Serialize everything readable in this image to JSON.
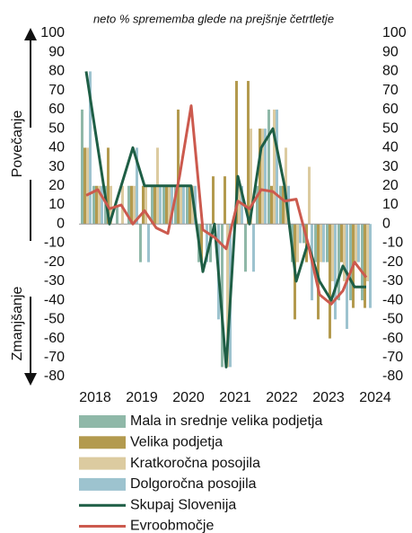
{
  "chart_data": {
    "type": "bar_line",
    "title": "neto % sprememba glede na prejšnje četrtletje",
    "y_label_up": "Povečanje",
    "y_label_down": "Zmanjšanje",
    "categories": [
      "2018",
      null,
      null,
      null,
      "2019",
      null,
      null,
      null,
      "2020",
      null,
      null,
      null,
      "2021",
      null,
      null,
      null,
      "2022",
      null,
      null,
      null,
      "2023",
      null,
      null,
      null,
      "2024"
    ],
    "ylim": [
      -80,
      100
    ],
    "yticks": [
      -80,
      -70,
      -60,
      -50,
      -40,
      -30,
      -20,
      -10,
      0,
      10,
      20,
      30,
      40,
      50,
      60,
      70,
      80,
      90,
      100
    ],
    "y2lim": [
      -80,
      100
    ],
    "y2ticks": [
      -80,
      -70,
      -60,
      -50,
      -40,
      -30,
      -20,
      -10,
      0,
      10,
      20,
      30,
      40,
      50,
      60,
      70,
      80,
      90,
      100
    ],
    "series": [
      {
        "name": "Mala in srednje velika podjetja",
        "type": "bar",
        "color": "#8fb8a8",
        "values": [
          60,
          20,
          20,
          10,
          20,
          -20,
          20,
          20,
          20,
          20,
          -20,
          -20,
          -75,
          0,
          -25,
          20,
          60,
          20,
          -20,
          -10,
          -20,
          -20,
          -40,
          -40,
          -40
        ]
      },
      {
        "name": "Velika podjetja",
        "type": "bar",
        "color": "#b39a4e",
        "values": [
          40,
          20,
          40,
          0,
          20,
          20,
          20,
          20,
          60,
          20,
          -20,
          25,
          25,
          75,
          75,
          50,
          20,
          20,
          -50,
          -20,
          -50,
          -60,
          -20,
          -44,
          -44
        ]
      },
      {
        "name": "Kratkoročna posojila",
        "type": "bar",
        "color": "#dccba0",
        "values": [
          40,
          20,
          20,
          20,
          20,
          20,
          40,
          20,
          20,
          20,
          0,
          0,
          -75,
          20,
          50,
          50,
          60,
          40,
          -20,
          30,
          -20,
          -30,
          -30,
          -20,
          -30
        ]
      },
      {
        "name": "Dolgoročna posojila",
        "type": "bar",
        "color": "#9dc3cf",
        "values": [
          80,
          20,
          0,
          0,
          40,
          -20,
          20,
          20,
          20,
          20,
          -20,
          -50,
          -75,
          20,
          -25,
          50,
          60,
          20,
          -10,
          -40,
          -20,
          -50,
          -55,
          -20,
          -44
        ]
      },
      {
        "name": "Skupaj Slovenija",
        "type": "line",
        "color": "#1e5e45",
        "values": [
          80,
          40,
          0,
          20,
          40,
          20,
          20,
          20,
          20,
          20,
          -25,
          0,
          -75,
          25,
          0,
          40,
          50,
          20,
          -30,
          -10,
          -30,
          -40,
          -22,
          -33,
          -33
        ]
      },
      {
        "name": "Evroobmočje",
        "type": "line",
        "color": "#cc5a4e",
        "values": [
          15,
          18,
          8,
          10,
          0,
          7,
          -2,
          -5,
          25,
          62,
          -3,
          -7,
          -13,
          12,
          8,
          18,
          17,
          12,
          13,
          -10,
          -37,
          -42,
          -35,
          -20,
          -28
        ]
      }
    ]
  }
}
